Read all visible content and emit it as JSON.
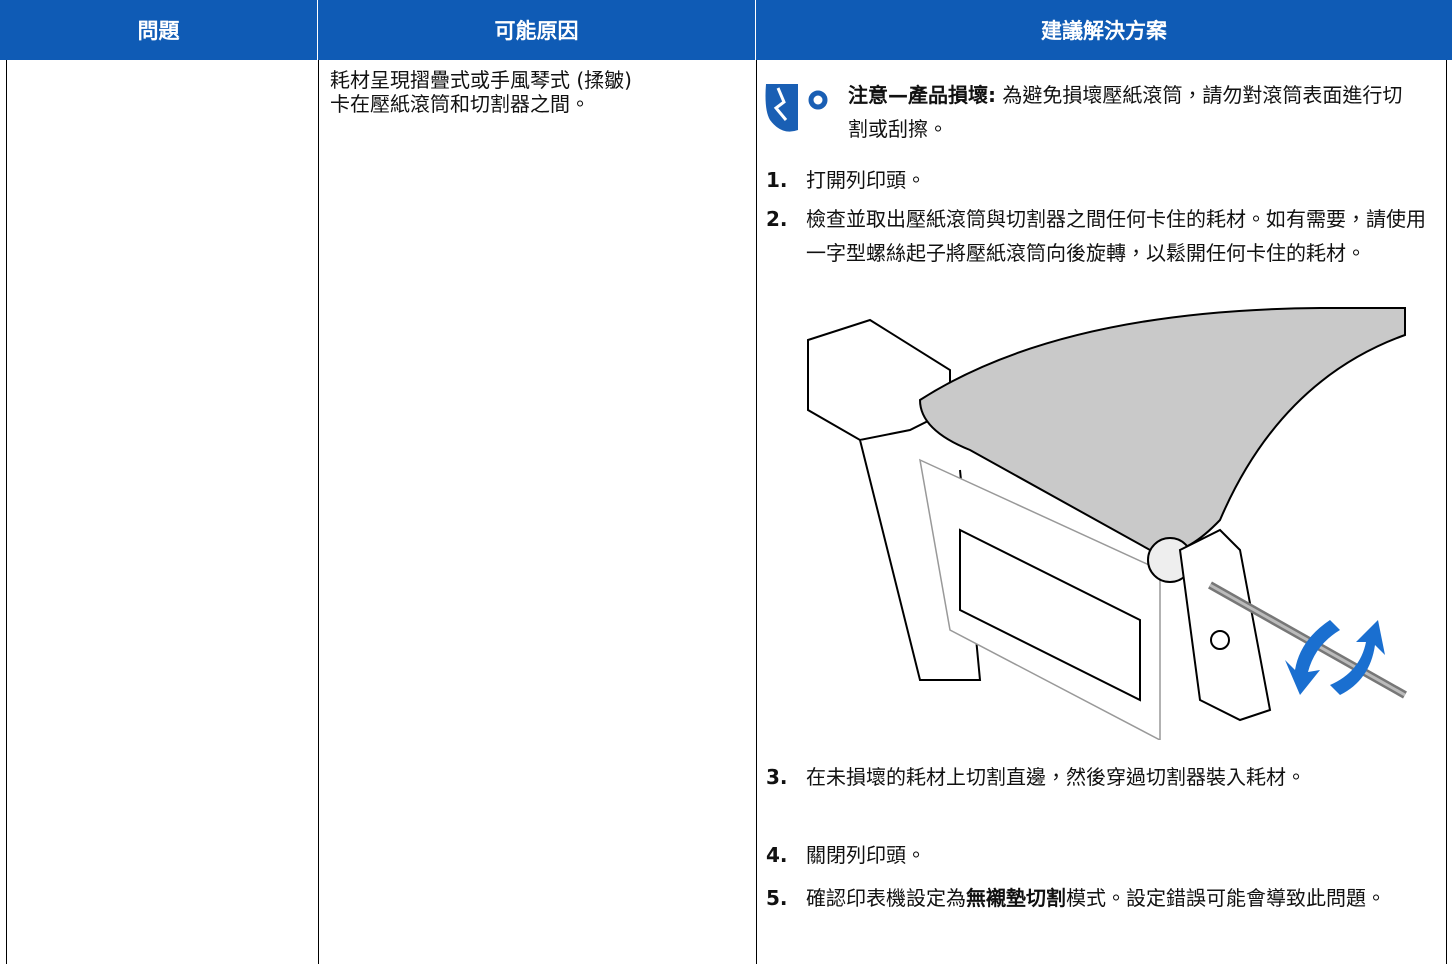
{
  "table": {
    "headers": [
      "問題",
      "可能原因",
      "建議解決方案"
    ],
    "rows": [
      {
        "cause": [
          "耗材呈現摺疊式或手風琴式 (揉皺)",
          "卡在壓紙滾筒和切割器之間。"
        ],
        "solution": {
          "caution": {
            "label": "注意—產品損壞:",
            "text": "為避免損壞壓紙滾筒，請勿對滾筒表面進行切割或刮擦。"
          },
          "steps": [
            {
              "number": "1.",
              "parts": [
                "打開列印頭。"
              ]
            },
            {
              "number": "2.",
              "parts": [
                "檢查並取出壓紙滾筒與切割器之間任何卡住的耗材。如有需要，請使用一字型螺絲起子將壓紙滾筒向後旋轉，以鬆開任何卡住的耗材。"
              ]
            },
            {
              "number": "3.",
              "parts": [
                "在未損壞的耗材上切割直邊，然後穿過切割器裝入耗材。"
              ]
            },
            {
              "number": "4.",
              "parts": [
                "關閉列印頭。"
              ]
            },
            {
              "number": "5.",
              "parts": [
                "確認印表機設定為",
                "無襯墊切割",
                "模式。設定錯誤可能會導致此問題。"
              ]
            }
          ]
        }
      }
    ]
  }
}
